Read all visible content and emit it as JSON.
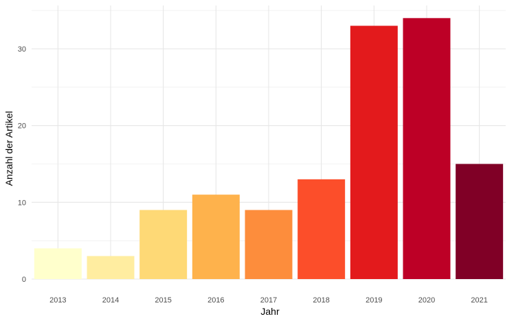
{
  "chart_data": {
    "type": "bar",
    "categories": [
      "2013",
      "2014",
      "2015",
      "2016",
      "2017",
      "2018",
      "2019",
      "2020",
      "2021"
    ],
    "values": [
      4,
      3,
      9,
      11,
      9,
      13,
      33,
      34,
      15
    ],
    "colors": [
      "#FFFFCC",
      "#FFEDA0",
      "#FED976",
      "#FEB24C",
      "#FD8D3C",
      "#FC4E2A",
      "#E31A1C",
      "#BD0026",
      "#800026"
    ],
    "title": "",
    "xlabel": "Jahr",
    "ylabel": "Anzahl der Artikel",
    "ylim": [
      0,
      35
    ],
    "yticks": [
      0,
      10,
      20,
      30
    ],
    "grid": true,
    "legend": "none"
  }
}
